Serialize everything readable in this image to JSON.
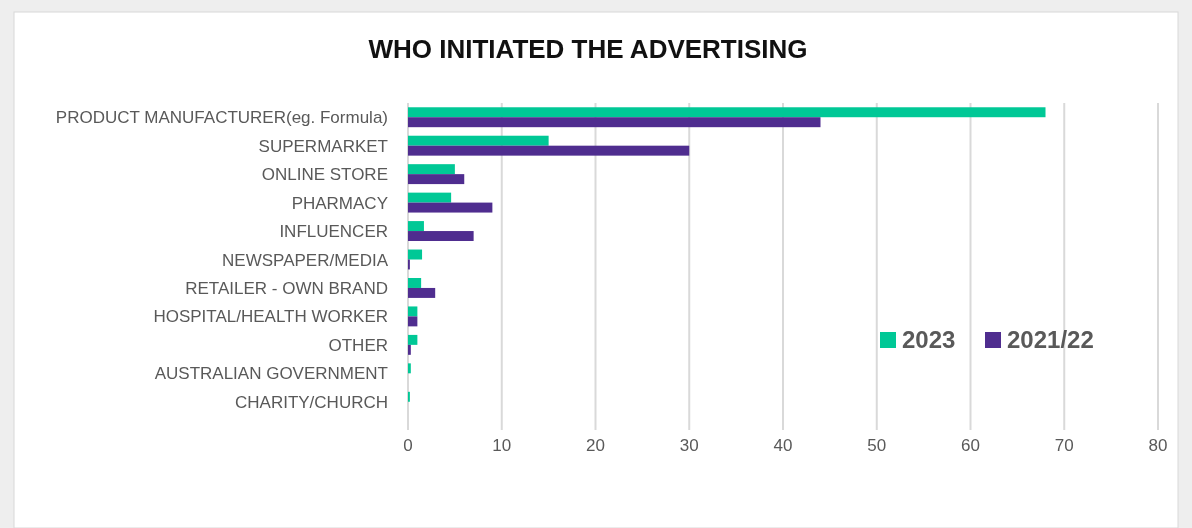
{
  "chart_data": {
    "type": "bar",
    "orientation": "horizontal",
    "title": "WHO INITIATED THE ADVERTISING",
    "categories": [
      "PRODUCT MANUFACTURER(eg. Formula)",
      "SUPERMARKET",
      "ONLINE STORE",
      "PHARMACY",
      "INFLUENCER",
      "NEWSPAPER/MEDIA",
      "RETAILER - OWN BRAND",
      "HOSPITAL/HEALTH WORKER",
      "OTHER",
      "AUSTRALIAN GOVERNMENT",
      "CHARITY/CHURCH"
    ],
    "series": [
      {
        "name": "2023",
        "color": "#00c896",
        "values": [
          68,
          15,
          5,
          4.6,
          1.7,
          1.5,
          1.4,
          1,
          1,
          0.3,
          0.2
        ]
      },
      {
        "name": "2021/22",
        "color": "#4f2d8f",
        "values": [
          44,
          30,
          6,
          9,
          7,
          0.2,
          2.9,
          1,
          0.3,
          null,
          null
        ]
      }
    ],
    "xlim": [
      0,
      80
    ],
    "xticks": [
      0,
      10,
      20,
      30,
      40,
      50,
      60,
      70,
      80
    ],
    "grid": "x",
    "legend": "bottom right"
  }
}
